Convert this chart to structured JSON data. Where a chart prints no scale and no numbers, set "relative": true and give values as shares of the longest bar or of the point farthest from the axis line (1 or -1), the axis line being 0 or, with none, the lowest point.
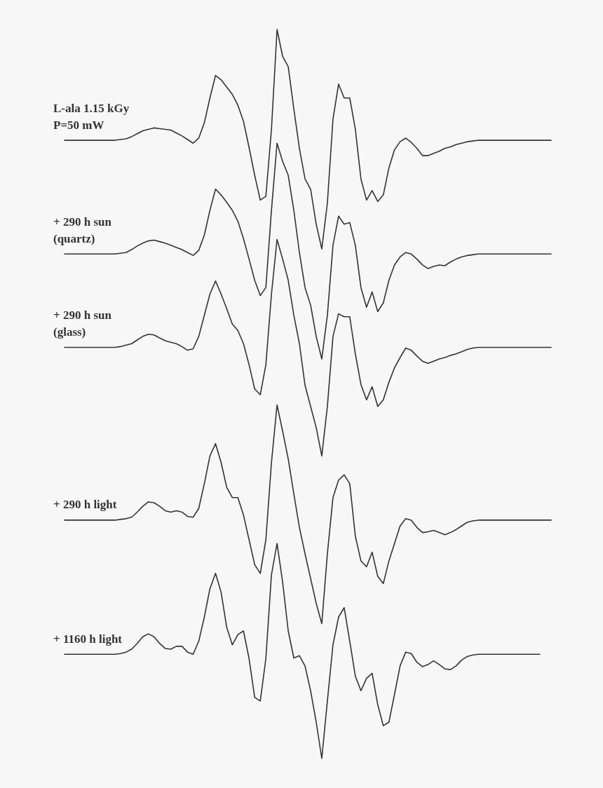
{
  "chart_data": {
    "type": "line",
    "relative": true,
    "marker": "none",
    "line_style": "solid",
    "categories": [
      null,
      null,
      null,
      null,
      null,
      null,
      null,
      null,
      null,
      null,
      null,
      null,
      null,
      null,
      null,
      null,
      null,
      null,
      null,
      null,
      null,
      null,
      null,
      null,
      null,
      null,
      null,
      null,
      null,
      null,
      null,
      null,
      null,
      null,
      null,
      null,
      null,
      null,
      null,
      null,
      null,
      null,
      null,
      null,
      null,
      null,
      null,
      null,
      null,
      null,
      null,
      null,
      null,
      null,
      null,
      null,
      null,
      null,
      null,
      null,
      null,
      null,
      null,
      null,
      null,
      null,
      null,
      null,
      null,
      null,
      null,
      null,
      null,
      null,
      null,
      null,
      null,
      null,
      null,
      null,
      null,
      null,
      null,
      null,
      null,
      null,
      null,
      null
    ],
    "series": [
      {
        "name": "L-ala 1.15 kGy\nP=50 mW",
        "color": "#333333",
        "values": [
          0.848,
          0.848,
          0.848,
          0.848,
          0.848,
          0.848,
          0.848,
          0.848,
          0.848,
          0.848,
          0.849,
          0.85,
          0.853,
          0.857,
          0.861,
          0.863,
          0.865,
          0.864,
          0.863,
          0.862,
          0.858,
          0.854,
          0.849,
          0.844,
          0.851,
          0.872,
          0.906,
          0.937,
          0.931,
          0.921,
          0.911,
          0.896,
          0.874,
          0.838,
          0.8,
          0.766,
          0.771,
          0.863,
          1.0,
          0.963,
          0.949,
          0.891,
          0.837,
          0.795,
          0.781,
          0.733,
          0.699,
          0.762,
          0.877,
          0.925,
          0.906,
          0.906,
          0.863,
          0.795,
          0.766,
          0.779,
          0.764,
          0.773,
          0.81,
          0.835,
          0.846,
          0.851,
          0.845,
          0.837,
          0.827,
          0.827,
          0.83,
          0.833,
          0.837,
          0.839,
          0.842,
          0.844,
          0.846,
          0.847,
          0.848,
          0.848,
          0.848,
          0.848,
          0.848,
          0.848,
          0.848,
          0.848,
          0.848,
          0.848,
          0.848,
          0.848,
          0.848,
          0.848
        ]
      },
      {
        "name": "+ 290 h sun\n(quartz)",
        "color": "#333333",
        "values": [
          0.692,
          0.692,
          0.692,
          0.692,
          0.692,
          0.692,
          0.692,
          0.692,
          0.692,
          0.692,
          0.693,
          0.694,
          0.698,
          0.703,
          0.707,
          0.71,
          0.711,
          0.709,
          0.707,
          0.704,
          0.701,
          0.698,
          0.694,
          0.69,
          0.697,
          0.718,
          0.752,
          0.781,
          0.773,
          0.763,
          0.752,
          0.737,
          0.713,
          0.685,
          0.656,
          0.635,
          0.646,
          0.752,
          0.844,
          0.819,
          0.8,
          0.752,
          0.694,
          0.646,
          0.622,
          0.579,
          0.548,
          0.608,
          0.704,
          0.744,
          0.733,
          0.735,
          0.704,
          0.646,
          0.619,
          0.64,
          0.613,
          0.625,
          0.656,
          0.677,
          0.688,
          0.694,
          0.692,
          0.685,
          0.677,
          0.672,
          0.675,
          0.677,
          0.676,
          0.681,
          0.685,
          0.688,
          0.69,
          0.691,
          0.692,
          0.692,
          0.692,
          0.692,
          0.692,
          0.692,
          0.692,
          0.692,
          0.692,
          0.692,
          0.692,
          0.692,
          0.692,
          0.692
        ]
      },
      {
        "name": "+ 290 h sun\n(glass)",
        "color": "#333333",
        "values": [
          0.564,
          0.564,
          0.564,
          0.564,
          0.564,
          0.564,
          0.564,
          0.564,
          0.564,
          0.564,
          0.565,
          0.567,
          0.569,
          0.574,
          0.579,
          0.582,
          0.581,
          0.577,
          0.573,
          0.571,
          0.569,
          0.565,
          0.56,
          0.562,
          0.579,
          0.608,
          0.637,
          0.655,
          0.637,
          0.617,
          0.596,
          0.587,
          0.569,
          0.54,
          0.507,
          0.499,
          0.54,
          0.637,
          0.712,
          0.685,
          0.656,
          0.608,
          0.569,
          0.512,
          0.483,
          0.454,
          0.415,
          0.483,
          0.579,
          0.61,
          0.606,
          0.606,
          0.555,
          0.513,
          0.492,
          0.51,
          0.483,
          0.492,
          0.516,
          0.536,
          0.55,
          0.563,
          0.56,
          0.552,
          0.545,
          0.542,
          0.545,
          0.548,
          0.55,
          0.553,
          0.555,
          0.558,
          0.561,
          0.563,
          0.564,
          0.564,
          0.564,
          0.564,
          0.564,
          0.564,
          0.564,
          0.564,
          0.564,
          0.564,
          0.564,
          0.564,
          0.564,
          0.564
        ]
      },
      {
        "name": "+ 290 h light",
        "color": "#333333",
        "values": [
          0.327,
          0.327,
          0.327,
          0.327,
          0.327,
          0.327,
          0.327,
          0.327,
          0.327,
          0.327,
          0.328,
          0.329,
          0.331,
          0.338,
          0.346,
          0.352,
          0.351,
          0.346,
          0.34,
          0.338,
          0.34,
          0.338,
          0.332,
          0.331,
          0.343,
          0.377,
          0.415,
          0.432,
          0.406,
          0.372,
          0.358,
          0.358,
          0.334,
          0.3,
          0.266,
          0.254,
          0.3,
          0.406,
          0.485,
          0.449,
          0.411,
          0.363,
          0.317,
          0.281,
          0.247,
          0.213,
          0.185,
          0.281,
          0.358,
          0.382,
          0.389,
          0.377,
          0.305,
          0.271,
          0.263,
          0.283,
          0.25,
          0.24,
          0.271,
          0.295,
          0.319,
          0.329,
          0.327,
          0.317,
          0.31,
          0.311,
          0.313,
          0.31,
          0.307,
          0.31,
          0.314,
          0.319,
          0.324,
          0.326,
          0.327,
          0.327,
          0.327,
          0.327,
          0.327,
          0.327,
          0.327,
          0.327,
          0.327,
          0.327,
          0.327,
          0.327,
          0.327,
          0.327
        ]
      },
      {
        "name": "+ 1160 h light",
        "color": "#333333",
        "values": [
          0.143,
          0.143,
          0.143,
          0.143,
          0.143,
          0.143,
          0.143,
          0.143,
          0.143,
          0.143,
          0.144,
          0.146,
          0.15,
          0.158,
          0.167,
          0.171,
          0.167,
          0.158,
          0.151,
          0.15,
          0.154,
          0.154,
          0.146,
          0.143,
          0.161,
          0.194,
          0.233,
          0.254,
          0.228,
          0.18,
          0.156,
          0.17,
          0.175,
          0.137,
          0.084,
          0.079,
          0.137,
          0.252,
          0.295,
          0.242,
          0.175,
          0.138,
          0.141,
          0.127,
          0.093,
          0.05,
          0.0,
          0.079,
          0.156,
          0.194,
          0.207,
          0.161,
          0.113,
          0.093,
          0.11,
          0.117,
          0.074,
          0.045,
          0.05,
          0.088,
          0.127,
          0.146,
          0.144,
          0.132,
          0.126,
          0.129,
          0.134,
          0.129,
          0.123,
          0.122,
          0.127,
          0.135,
          0.14,
          0.142,
          0.143,
          0.143,
          0.143,
          0.143,
          0.143,
          0.143,
          0.143,
          0.143,
          0.143,
          0.143,
          0.143,
          0.143,
          null,
          null
        ]
      }
    ]
  }
}
